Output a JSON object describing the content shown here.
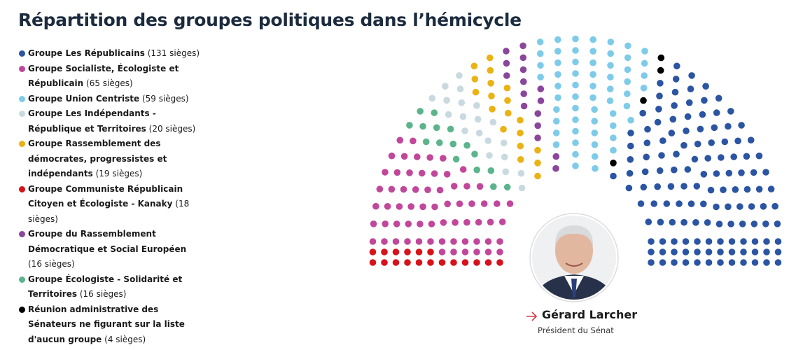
{
  "chart_data": {
    "type": "hemicycle",
    "title": "Répartition des groupes politiques dans l’hémicycle",
    "categories": [
      "Groupe Les Républicains",
      "Groupe Socialiste, Écologiste et Républicain",
      "Groupe Union Centriste",
      "Groupe Les Indépendants - République et Territoires",
      "Groupe Rassemblement des démocrates, progressistes et indépendants",
      "Groupe Communiste Républicain Citoyen et Écologiste - Kanaky",
      "Groupe du Rassemblement Démocratique et Social Européen",
      "Groupe Écologiste - Solidarité et Territoires",
      "Réunion administrative des Sénateurs ne figurant sur la liste d'aucun groupe"
    ],
    "values": [
      131,
      65,
      59,
      20,
      19,
      18,
      16,
      16,
      4
    ],
    "value_labels": [
      "(131 sièges)",
      "(65 sièges)",
      "(59 sièges)",
      "(20 sièges)",
      "(19 sièges)",
      "(18 sièges)",
      "(16 sièges)",
      "(16 sièges)",
      "(4 sièges)"
    ],
    "colors": [
      "#2b55a3",
      "#c1479b",
      "#7ecbe9",
      "#c9d9e0",
      "#ebb215",
      "#d7121a",
      "#8a469b",
      "#5bb48c",
      "#000000"
    ]
  },
  "president": {
    "name": "Gérard Larcher",
    "role": "Président du Sénat"
  }
}
